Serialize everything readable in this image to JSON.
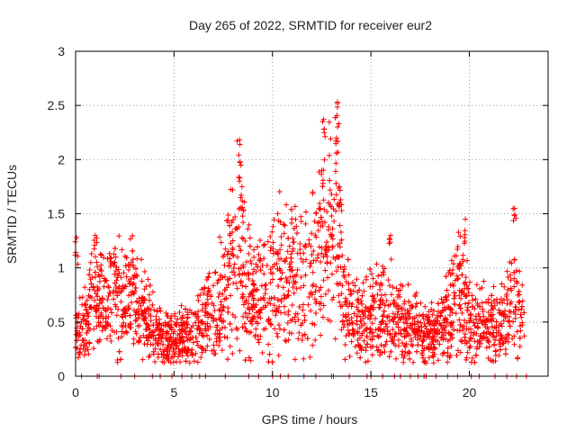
{
  "chart_data": {
    "type": "scatter",
    "title": "Day 265 of 2022, SRMTID for receiver eur2",
    "xlabel": "GPS time / hours",
    "ylabel": "SRMTID / TECUs",
    "xlim": [
      0,
      24
    ],
    "ylim": [
      0,
      3
    ],
    "xticks": [
      0,
      5,
      10,
      15,
      20
    ],
    "yticks": [
      0,
      0.5,
      1,
      1.5,
      2,
      2.5,
      3
    ],
    "xtick_labels": [
      "0",
      "5",
      "10",
      "15",
      "20"
    ],
    "ytick_labels": [
      "0",
      "0.5",
      "1",
      "1.5",
      "2",
      "2.5",
      "3"
    ],
    "grid": true,
    "marker": "+",
    "color": "#ff0000",
    "series": [
      {
        "name": "SRMTID",
        "envelope_hours": [
          0,
          0.5,
          1,
          1.5,
          2,
          2.5,
          3,
          3.5,
          4,
          4.5,
          5,
          5.5,
          6,
          6.5,
          7,
          7.5,
          8,
          8.3,
          8.6,
          9,
          9.5,
          10,
          10.5,
          11,
          11.5,
          12,
          12.5,
          13,
          13.3,
          13.6,
          14,
          14.5,
          15,
          15.5,
          16,
          16.5,
          17,
          17.5,
          18,
          18.5,
          19,
          19.5,
          20,
          20.5,
          21,
          21.5,
          22,
          22.3,
          22.8
        ],
        "envelope_values": [
          0.35,
          0.45,
          0.7,
          0.6,
          0.75,
          0.65,
          0.7,
          0.55,
          0.4,
          0.35,
          0.35,
          0.35,
          0.35,
          0.5,
          0.6,
          0.7,
          1.05,
          1.2,
          0.85,
          0.7,
          0.7,
          0.85,
          0.95,
          0.9,
          0.8,
          0.9,
          1.1,
          1.2,
          1.3,
          0.7,
          0.5,
          0.45,
          0.55,
          0.6,
          0.55,
          0.45,
          0.45,
          0.4,
          0.35,
          0.4,
          0.55,
          0.75,
          0.55,
          0.45,
          0.45,
          0.45,
          0.55,
          0.7,
          0.4
        ],
        "spikes": [
          {
            "x": 8.35,
            "y": 1.98
          },
          {
            "x": 8.45,
            "y": 1.75
          },
          {
            "x": 12.6,
            "y": 2.37
          },
          {
            "x": 12.5,
            "y": 1.9
          },
          {
            "x": 13.3,
            "y": 2.53
          },
          {
            "x": 13.25,
            "y": 2.2
          },
          {
            "x": 13.4,
            "y": 1.75
          },
          {
            "x": 0.05,
            "y": 1.28
          },
          {
            "x": 1.0,
            "y": 1.3
          },
          {
            "x": 2.0,
            "y": 1.18
          },
          {
            "x": 16.0,
            "y": 1.3
          },
          {
            "x": 19.8,
            "y": 1.45
          },
          {
            "x": 22.3,
            "y": 1.55
          }
        ],
        "zero_hours": [
          0.3,
          1.1,
          1.2,
          2.3,
          3.0,
          3.9,
          4.3,
          4.9,
          5.4,
          5.9,
          6.3,
          6.6,
          7.6,
          8.8,
          9.3,
          10.0,
          10.4,
          10.8,
          11.6,
          12.2,
          13.0,
          13.1,
          13.9,
          14.8,
          15.0,
          15.6,
          16.2,
          16.5,
          17.0,
          17.4,
          17.7,
          17.8,
          18.3,
          18.9,
          19.4,
          20.1,
          20.5,
          21.3,
          21.9,
          22.4,
          22.9
        ]
      }
    ]
  }
}
